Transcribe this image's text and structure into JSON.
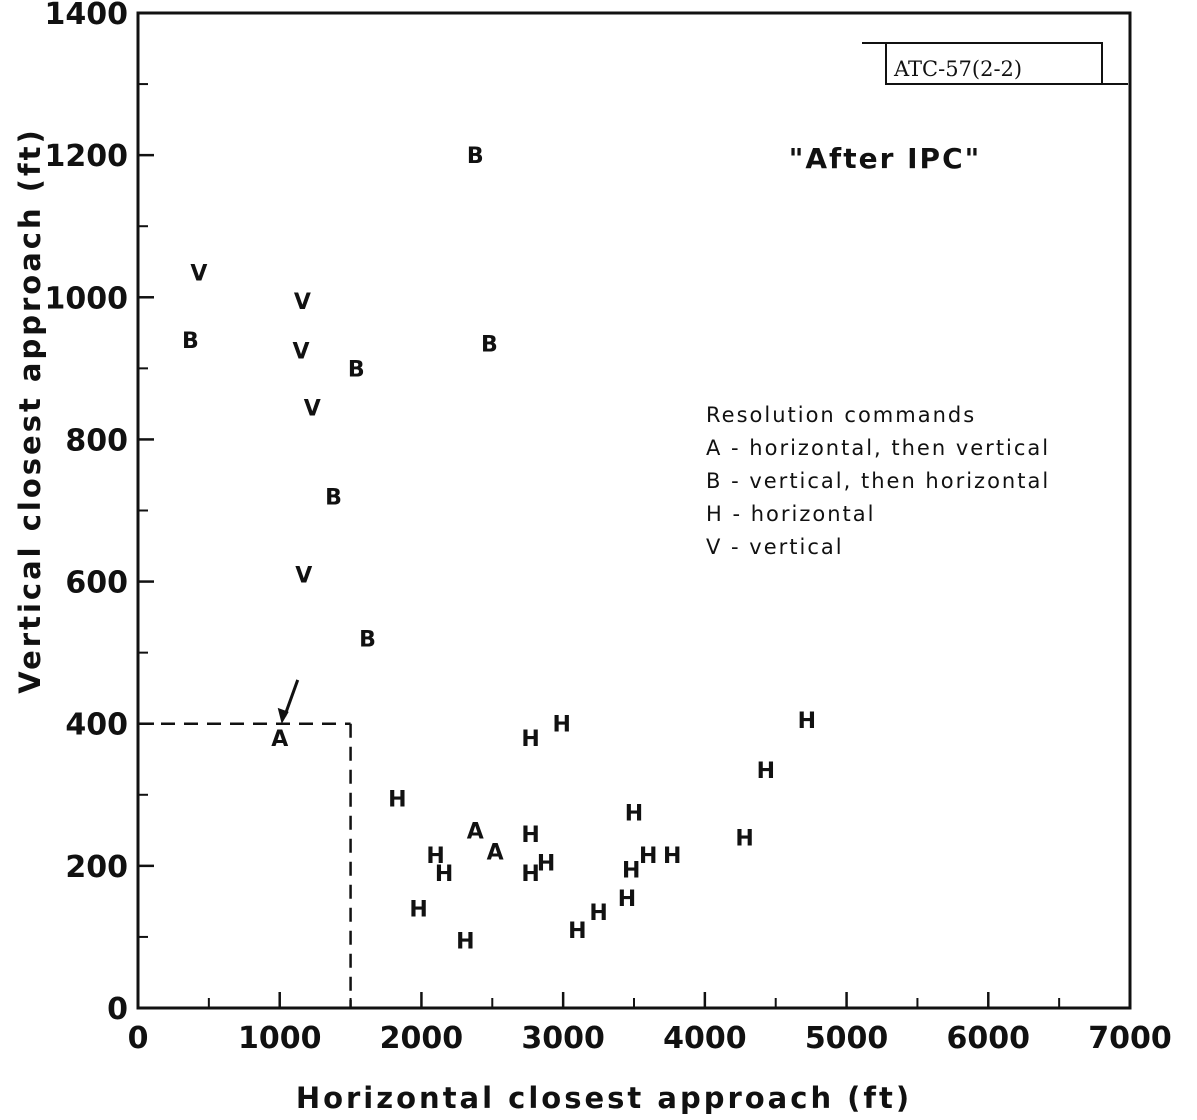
{
  "chart_data": {
    "type": "scatter",
    "title": "\"After IPC\"",
    "xlabel": "Horizontal closest approach (ft)",
    "ylabel": "Vertical closest approach (ft)",
    "xlim": [
      0,
      7000
    ],
    "ylim": [
      0,
      1400
    ],
    "xticks": [
      0,
      1000,
      2000,
      3000,
      4000,
      5000,
      6000,
      7000
    ],
    "yticks": [
      0,
      200,
      400,
      600,
      800,
      1000,
      1200,
      1400
    ],
    "stamp": "ATC-57(2-2)",
    "legend": {
      "title": "Resolution commands",
      "entries": [
        "A - horizontal, then vertical",
        "B - vertical, then horizontal",
        "H - horizontal",
        "V - vertical"
      ]
    },
    "reference_point": {
      "x": 1500,
      "y": 400
    },
    "points": [
      {
        "label": "A",
        "x": 1000,
        "y": 380
      },
      {
        "label": "A",
        "x": 2380,
        "y": 250
      },
      {
        "label": "A",
        "x": 2520,
        "y": 220
      },
      {
        "label": "B",
        "x": 370,
        "y": 940
      },
      {
        "label": "B",
        "x": 1540,
        "y": 900
      },
      {
        "label": "B",
        "x": 1380,
        "y": 720
      },
      {
        "label": "B",
        "x": 1620,
        "y": 520
      },
      {
        "label": "B",
        "x": 2380,
        "y": 1200
      },
      {
        "label": "B",
        "x": 2480,
        "y": 935
      },
      {
        "label": "V",
        "x": 430,
        "y": 1035
      },
      {
        "label": "V",
        "x": 1160,
        "y": 995
      },
      {
        "label": "V",
        "x": 1150,
        "y": 925
      },
      {
        "label": "V",
        "x": 1230,
        "y": 845
      },
      {
        "label": "V",
        "x": 1170,
        "y": 610
      },
      {
        "label": "H",
        "x": 1830,
        "y": 295
      },
      {
        "label": "H",
        "x": 2100,
        "y": 215
      },
      {
        "label": "H",
        "x": 2160,
        "y": 190
      },
      {
        "label": "H",
        "x": 1980,
        "y": 140
      },
      {
        "label": "H",
        "x": 2310,
        "y": 95
      },
      {
        "label": "H",
        "x": 2770,
        "y": 380
      },
      {
        "label": "H",
        "x": 2990,
        "y": 400
      },
      {
        "label": "H",
        "x": 2770,
        "y": 245
      },
      {
        "label": "H",
        "x": 2770,
        "y": 190
      },
      {
        "label": "H",
        "x": 2880,
        "y": 205
      },
      {
        "label": "H",
        "x": 3100,
        "y": 110
      },
      {
        "label": "H",
        "x": 3250,
        "y": 135
      },
      {
        "label": "H",
        "x": 3450,
        "y": 155
      },
      {
        "label": "H",
        "x": 3480,
        "y": 195
      },
      {
        "label": "H",
        "x": 3500,
        "y": 275
      },
      {
        "label": "H",
        "x": 3600,
        "y": 215
      },
      {
        "label": "H",
        "x": 3770,
        "y": 215
      },
      {
        "label": "H",
        "x": 4280,
        "y": 240
      },
      {
        "label": "H",
        "x": 4430,
        "y": 335
      },
      {
        "label": "H",
        "x": 4720,
        "y": 405
      }
    ]
  }
}
